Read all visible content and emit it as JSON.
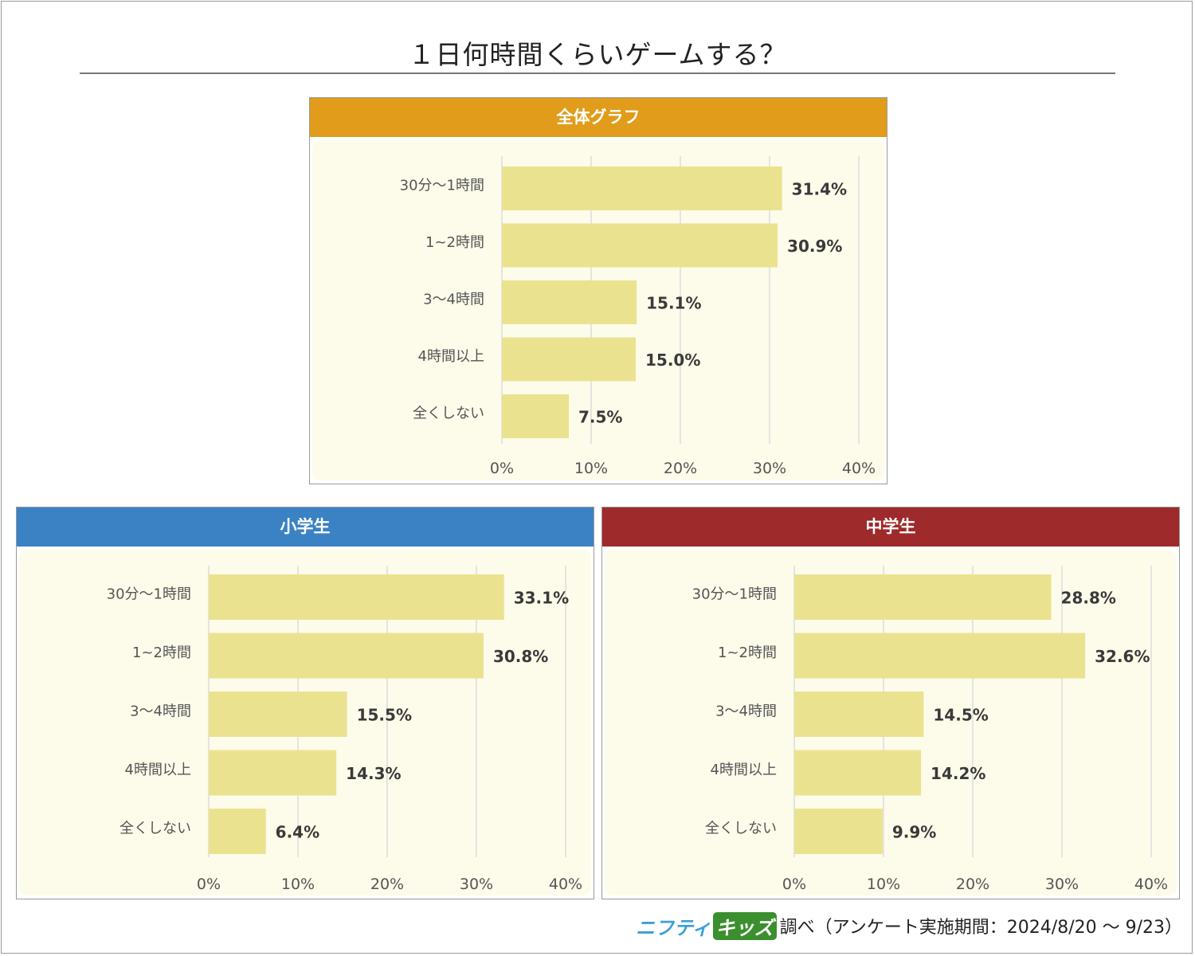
{
  "title": "１日何時間くらいゲームする？",
  "footer": {
    "brand_part1": "ニフティ",
    "brand_part2": "キッズ",
    "text": "調べ（アンケート実施期間：2024/8/20 ～ 9/23）"
  },
  "colors": {
    "bar": "#ebe290",
    "plot_bg": "#fdfbea",
    "grid": "#dcdcdc",
    "header_all": "#e09c1a",
    "header_elem": "#3a82c4",
    "header_mid": "#9e2a2b"
  },
  "chart_data": [
    {
      "type": "bar",
      "orientation": "horizontal",
      "title": "全体グラフ",
      "categories": [
        "30分～1時間",
        "1~2時間",
        "3～4時間",
        "4時間以上",
        "全くしない"
      ],
      "values": [
        31.4,
        30.9,
        15.1,
        15.0,
        7.5
      ],
      "value_labels": [
        "31.4%",
        "30.9%",
        "15.1%",
        "15.0%",
        "7.5%"
      ],
      "xlim": [
        0,
        40
      ],
      "xticks": [
        "0%",
        "10%",
        "20%",
        "30%",
        "40%"
      ],
      "grid": true
    },
    {
      "type": "bar",
      "orientation": "horizontal",
      "title": "小学生",
      "categories": [
        "30分～1時間",
        "1~2時間",
        "3～4時間",
        "4時間以上",
        "全くしない"
      ],
      "values": [
        33.1,
        30.8,
        15.5,
        14.3,
        6.4
      ],
      "value_labels": [
        "33.1%",
        "30.8%",
        "15.5%",
        "14.3%",
        "6.4%"
      ],
      "xlim": [
        0,
        40
      ],
      "xticks": [
        "0%",
        "10%",
        "20%",
        "30%",
        "40%"
      ],
      "grid": true
    },
    {
      "type": "bar",
      "orientation": "horizontal",
      "title": "中学生",
      "categories": [
        "30分～1時間",
        "1~2時間",
        "3～4時間",
        "4時間以上",
        "全くしない"
      ],
      "values": [
        28.8,
        32.6,
        14.5,
        14.2,
        9.9
      ],
      "value_labels": [
        "28.8%",
        "32.6%",
        "14.5%",
        "14.2%",
        "9.9%"
      ],
      "xlim": [
        0,
        40
      ],
      "xticks": [
        "0%",
        "10%",
        "20%",
        "30%",
        "40%"
      ],
      "grid": true
    }
  ]
}
